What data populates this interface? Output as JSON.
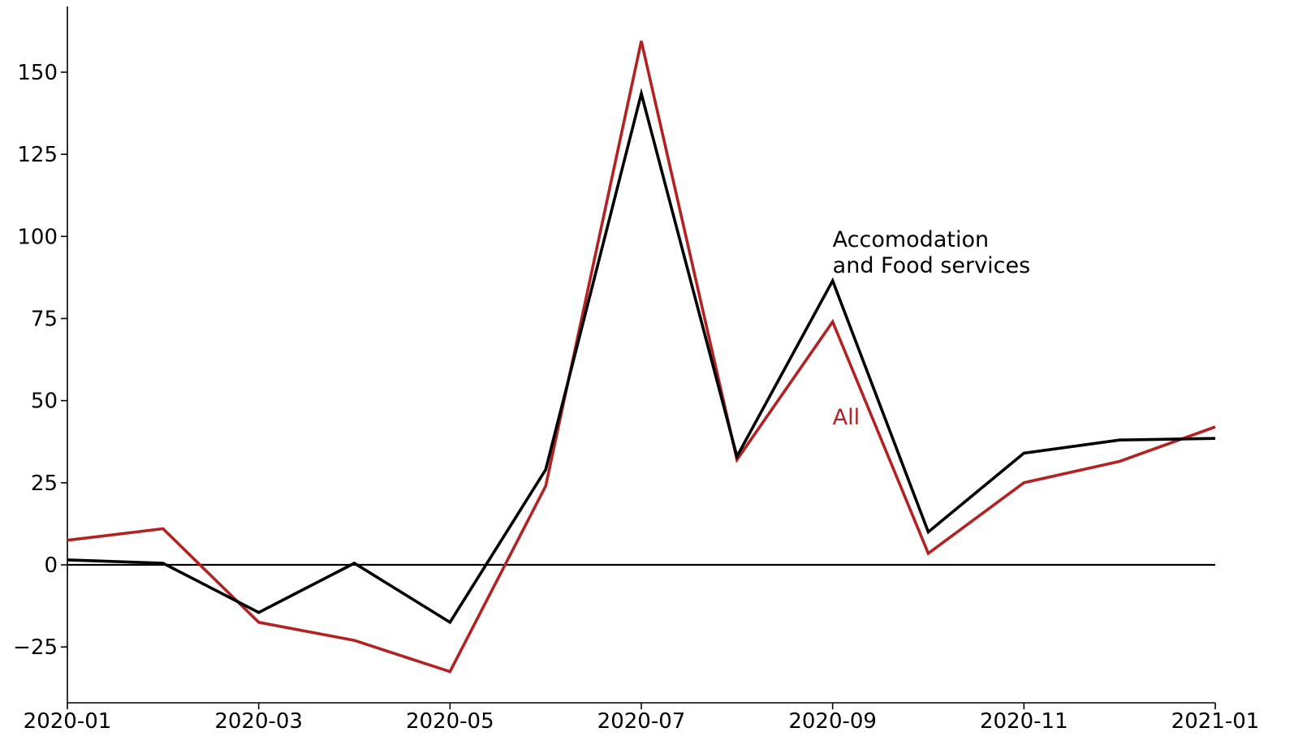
{
  "chart_data": {
    "type": "line",
    "title": "",
    "xlabel": "",
    "ylabel": "",
    "x": [
      "2020-01",
      "2020-02",
      "2020-03",
      "2020-04",
      "2020-05",
      "2020-06",
      "2020-07",
      "2020-08",
      "2020-09",
      "2020-10",
      "2020-11",
      "2020-12",
      "2021-01"
    ],
    "x_tick_labels": [
      "2020-01",
      "2020-03",
      "2020-05",
      "2020-07",
      "2020-09",
      "2020-11",
      "2021-01"
    ],
    "y_ticks": [
      -25,
      0,
      25,
      50,
      75,
      100,
      125,
      150
    ],
    "y_tick_labels": [
      "−25",
      "0",
      "25",
      "50",
      "75",
      "100",
      "125",
      "150"
    ],
    "ylim": [
      -42,
      170
    ],
    "zero_line": true,
    "grid": false,
    "series": [
      {
        "name": "Accomodation and Food services",
        "label_lines": [
          "Accomodation",
          "and Food services"
        ],
        "color": "#000000",
        "values": [
          1.5,
          0.5,
          -14.5,
          0.5,
          -17.5,
          29,
          143.5,
          33,
          86.5,
          10,
          34,
          38,
          38.5
        ]
      },
      {
        "name": "All",
        "label_lines": [
          "All"
        ],
        "color": "#b22222",
        "values": [
          7.5,
          11,
          -17.5,
          -23,
          -32.5,
          24,
          159.5,
          32,
          74,
          3.5,
          25,
          31.5,
          42
        ]
      }
    ]
  }
}
